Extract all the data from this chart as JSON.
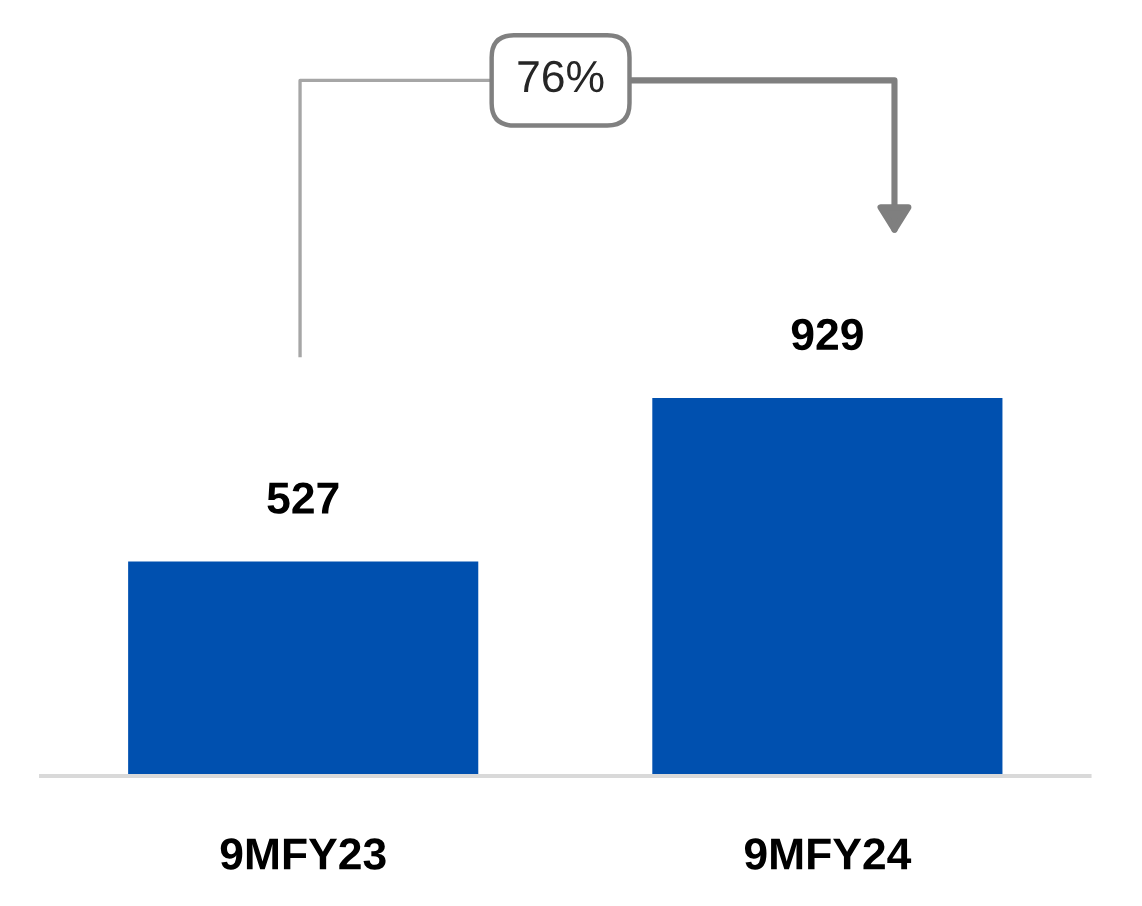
{
  "chart_data": {
    "type": "bar",
    "categories": [
      "9MFY23",
      "9MFY24"
    ],
    "values": [
      527,
      929
    ],
    "color": "#0050af",
    "data_labels": true,
    "grid": false,
    "annotations": [
      "76%"
    ]
  }
}
